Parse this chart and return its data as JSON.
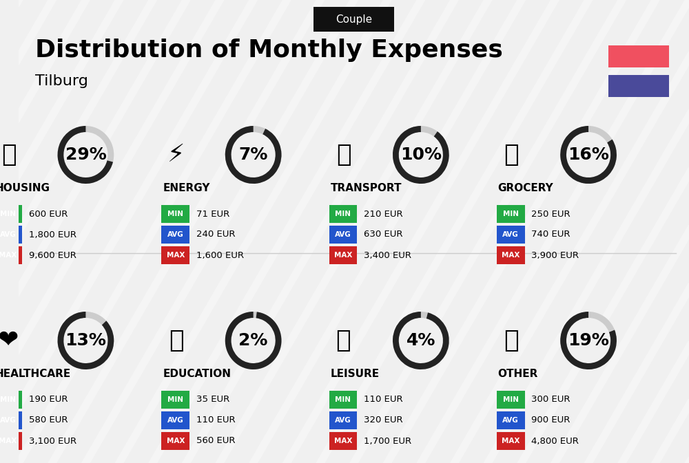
{
  "title": "Distribution of Monthly Expenses",
  "subtitle": "Tilburg",
  "tag": "Couple",
  "bg_color": "#f0f0f0",
  "red_rect": "#f05060",
  "blue_rect": "#4a4a9a",
  "categories": [
    {
      "name": "HOUSING",
      "pct": 29,
      "min": "600 EUR",
      "avg": "1,800 EUR",
      "max": "9,600 EUR",
      "icon": "🏢",
      "row": 0,
      "col": 0
    },
    {
      "name": "ENERGY",
      "pct": 7,
      "min": "71 EUR",
      "avg": "240 EUR",
      "max": "1,600 EUR",
      "icon": "⚡",
      "row": 0,
      "col": 1
    },
    {
      "name": "TRANSPORT",
      "pct": 10,
      "min": "210 EUR",
      "avg": "630 EUR",
      "max": "3,400 EUR",
      "icon": "🚌",
      "row": 0,
      "col": 2
    },
    {
      "name": "GROCERY",
      "pct": 16,
      "min": "250 EUR",
      "avg": "740 EUR",
      "max": "3,900 EUR",
      "icon": "🛒",
      "row": 0,
      "col": 3
    },
    {
      "name": "HEALTHCARE",
      "pct": 13,
      "min": "190 EUR",
      "avg": "580 EUR",
      "max": "3,100 EUR",
      "icon": "❤",
      "row": 1,
      "col": 0
    },
    {
      "name": "EDUCATION",
      "pct": 2,
      "min": "35 EUR",
      "avg": "110 EUR",
      "max": "560 EUR",
      "icon": "🎓",
      "row": 1,
      "col": 1
    },
    {
      "name": "LEISURE",
      "pct": 4,
      "min": "110 EUR",
      "avg": "320 EUR",
      "max": "1,700 EUR",
      "icon": "🛍",
      "row": 1,
      "col": 2
    },
    {
      "name": "OTHER",
      "pct": 19,
      "min": "300 EUR",
      "avg": "900 EUR",
      "max": "4,800 EUR",
      "icon": "💰",
      "row": 1,
      "col": 3
    }
  ],
  "min_color": "#22aa44",
  "avg_color": "#2255cc",
  "max_color": "#cc2222",
  "label_color": "#ffffff",
  "ring_filled": "#222222",
  "ring_empty": "#cccccc",
  "pct_fontsize": 18,
  "cat_fontsize": 11,
  "val_fontsize": 10
}
